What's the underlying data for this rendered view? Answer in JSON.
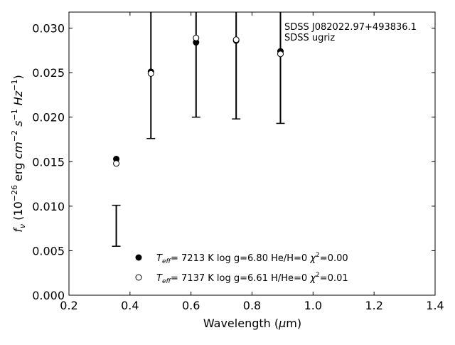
{
  "chart_data": {
    "type": "scatter",
    "xlabel": "Wavelength (μm)",
    "ylabel": "f_ν (10^-26 erg cm^-2 s^-1 Hz^-1)",
    "xlim": [
      0.2,
      1.4
    ],
    "ylim": [
      0.0,
      0.0318
    ],
    "xticks": [
      "0.2",
      "0.4",
      "0.6",
      "0.8",
      "1.0",
      "1.2",
      "1.4"
    ],
    "yticks": [
      "0.000",
      "0.005",
      "0.010",
      "0.015",
      "0.020",
      "0.025",
      "0.030"
    ],
    "grid": false,
    "annotation": [
      "SDSS J082022.97+493836.1",
      "SDSS ugriz"
    ],
    "observed": {
      "x": [
        0.3551,
        0.4686,
        0.6166,
        0.748,
        0.8932
      ],
      "y": [
        0.0078,
        0.0332,
        0.0335,
        0.0335,
        0.0335
      ],
      "yerr_low": [
        0.0055,
        0.0176,
        0.02,
        0.0198,
        0.0193
      ],
      "yerr_high": [
        0.0101,
        null,
        null,
        null,
        null
      ]
    },
    "models": [
      {
        "marker": "filled",
        "teff": "7213",
        "logg": "6.80",
        "comp": "He/H=0",
        "chi2": "0.00",
        "x": [
          0.3551,
          0.4686,
          0.6166,
          0.748,
          0.8932
        ],
        "y": [
          0.0153,
          0.0251,
          0.0284,
          0.0286,
          0.0274
        ]
      },
      {
        "marker": "open",
        "teff": "7137",
        "logg": "6.61",
        "comp": "H/He=0",
        "chi2": "0.01",
        "x": [
          0.3551,
          0.4686,
          0.6166,
          0.748,
          0.8932
        ],
        "y": [
          0.0148,
          0.0249,
          0.0289,
          0.0287,
          0.0271
        ]
      }
    ]
  }
}
